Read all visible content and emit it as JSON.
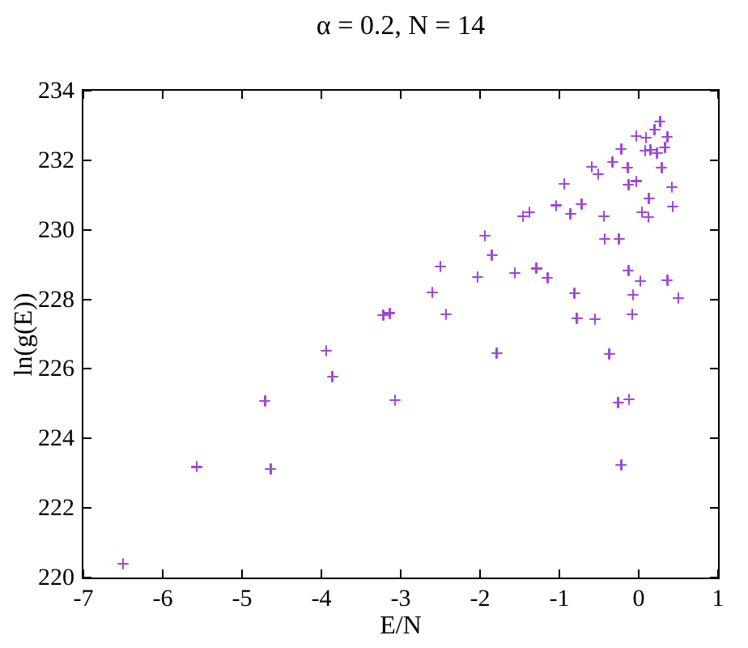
{
  "chart_data": {
    "type": "scatter",
    "title": "α = 0.2, N = 14",
    "xlabel": "E/N",
    "ylabel": "ln(g(E))",
    "xlim": [
      -7,
      1
    ],
    "ylim": [
      220,
      234
    ],
    "x_ticks": [
      "-7",
      "-6",
      "-5",
      "-4",
      "-3",
      "-2",
      "-1",
      "0",
      "1"
    ],
    "x_tick_values": [
      -7,
      -6,
      -5,
      -4,
      -3,
      -2,
      -1,
      0,
      1
    ],
    "y_ticks": [
      "220",
      "222",
      "224",
      "226",
      "228",
      "230",
      "232",
      "234"
    ],
    "y_tick_values": [
      220,
      222,
      224,
      226,
      228,
      230,
      232,
      234
    ],
    "grid": false,
    "legend": "none",
    "marker": "plus",
    "marker_color": "#a246d8",
    "frame_color": "#000000",
    "points": [
      [
        -6.5,
        220.4
      ],
      [
        -5.57,
        223.18
      ],
      [
        -4.71,
        225.08
      ],
      [
        -4.64,
        223.12
      ],
      [
        -3.94,
        226.52
      ],
      [
        -3.86,
        225.78
      ],
      [
        -3.22,
        227.55
      ],
      [
        -3.14,
        227.6
      ],
      [
        -3.07,
        225.1
      ],
      [
        -2.6,
        228.2
      ],
      [
        -2.5,
        228.95
      ],
      [
        -2.43,
        227.57
      ],
      [
        -2.03,
        228.64
      ],
      [
        -1.94,
        229.83
      ],
      [
        -1.85,
        229.27
      ],
      [
        -1.79,
        226.45
      ],
      [
        -1.56,
        228.76
      ],
      [
        -1.46,
        230.39
      ],
      [
        -1.38,
        230.51
      ],
      [
        -1.29,
        228.89
      ],
      [
        -1.15,
        228.62
      ],
      [
        -1.04,
        230.7
      ],
      [
        -0.94,
        231.32
      ],
      [
        -0.86,
        230.46
      ],
      [
        -0.81,
        228.18
      ],
      [
        -0.78,
        227.45
      ],
      [
        -0.72,
        230.74
      ],
      [
        -0.59,
        231.81
      ],
      [
        -0.55,
        227.43
      ],
      [
        -0.51,
        231.6
      ],
      [
        -0.44,
        230.39
      ],
      [
        -0.43,
        229.74
      ],
      [
        -0.37,
        226.43
      ],
      [
        -0.33,
        231.95
      ],
      [
        -0.26,
        225.03
      ],
      [
        -0.25,
        229.74
      ],
      [
        -0.22,
        232.32
      ],
      [
        -0.22,
        223.24
      ],
      [
        -0.14,
        231.79
      ],
      [
        -0.13,
        231.3
      ],
      [
        -0.13,
        228.83
      ],
      [
        -0.12,
        225.12
      ],
      [
        -0.08,
        227.57
      ],
      [
        -0.07,
        228.13
      ],
      [
        -0.03,
        232.7
      ],
      [
        -0.03,
        231.4
      ],
      [
        0.02,
        228.53
      ],
      [
        0.04,
        230.51
      ],
      [
        0.08,
        232.28
      ],
      [
        0.09,
        232.65
      ],
      [
        0.12,
        230.37
      ],
      [
        0.13,
        230.9
      ],
      [
        0.15,
        232.3
      ],
      [
        0.2,
        232.88
      ],
      [
        0.23,
        232.21
      ],
      [
        0.27,
        233.11
      ],
      [
        0.29,
        231.79
      ],
      [
        0.33,
        232.37
      ],
      [
        0.36,
        232.67
      ],
      [
        0.36,
        228.55
      ],
      [
        0.42,
        231.23
      ],
      [
        0.43,
        230.67
      ],
      [
        0.5,
        228.04
      ]
    ]
  }
}
